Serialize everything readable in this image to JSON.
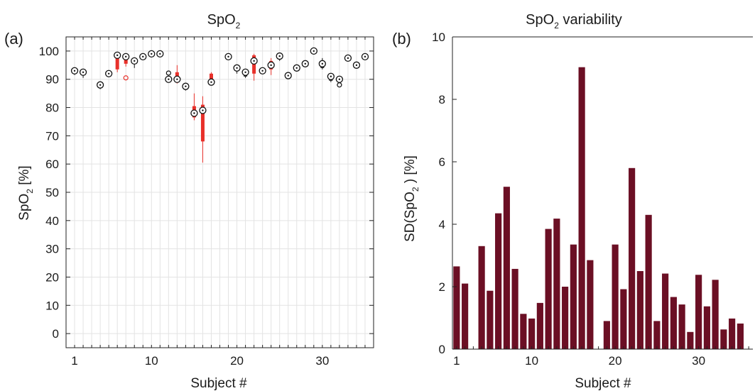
{
  "chart_data": [
    {
      "panel_label": "(a)",
      "type": "box",
      "title": "SpO",
      "title_sub": "2",
      "xlabel": "Subject #",
      "ylabel": "SpO",
      "ylabel_sub": "2",
      "ylabel_suffix": " [%]",
      "xlim": [
        0,
        36
      ],
      "ylim": [
        -5,
        105
      ],
      "xticks": [
        1,
        10,
        20,
        30
      ],
      "yticks": [
        0,
        10,
        20,
        30,
        40,
        50,
        60,
        70,
        80,
        90,
        100
      ],
      "grid": true,
      "colors": {
        "box": "#e8302a",
        "marker": "#111111",
        "grid": "#e3e3e3"
      },
      "boxes": [
        {
          "subject": 1,
          "median": 93,
          "q1": 92.5,
          "q3": 93.2,
          "wlo": 91.5,
          "whi": 93.5
        },
        {
          "subject": 2,
          "median": 92.5,
          "q1": 91.5,
          "q3": 92.6,
          "wlo": 90.5,
          "whi": 93
        },
        {
          "subject": 4,
          "median": 88,
          "q1": 87.7,
          "q3": 88.3,
          "wlo": 86.5,
          "whi": 88.6
        },
        {
          "subject": 5,
          "median": 92,
          "q1": 91.8,
          "q3": 92.2,
          "wlo": 91.5,
          "whi": 92.5
        },
        {
          "subject": 6,
          "median": 98.5,
          "q1": 93.5,
          "q3": 98.8,
          "wlo": 92.5,
          "whi": 99.5,
          "red": true
        },
        {
          "subject": 7,
          "median": 98,
          "q1": 95.5,
          "q3": 98.2,
          "wlo": 94.5,
          "whi": 98.5,
          "red": true,
          "outliers": [
            90.5
          ]
        },
        {
          "subject": 8,
          "median": 96.5,
          "q1": 95.5,
          "q3": 96.8,
          "wlo": 94,
          "whi": 97
        },
        {
          "subject": 9,
          "median": 98,
          "q1": 97.8,
          "q3": 98.2,
          "wlo": 97.5,
          "whi": 98.5
        },
        {
          "subject": 10,
          "median": 99,
          "q1": 98.8,
          "q3": 99.2,
          "wlo": 98.5,
          "whi": 99.5
        },
        {
          "subject": 11,
          "median": 99,
          "q1": 98.8,
          "q3": 99.2,
          "wlo": 98.5,
          "whi": 99.5
        },
        {
          "subject": 12,
          "median": 90,
          "q1": 89.7,
          "q3": 90.3,
          "wlo": 89.5,
          "whi": 90.5,
          "outliers": [
            92.2
          ]
        },
        {
          "subject": 13,
          "median": 90,
          "q1": 89,
          "q3": 92.5,
          "wlo": 88.5,
          "whi": 95,
          "red": true
        },
        {
          "subject": 14,
          "median": 87.5,
          "q1": 86.3,
          "q3": 87.7,
          "wlo": 86,
          "whi": 88
        },
        {
          "subject": 15,
          "median": 78,
          "q1": 76.5,
          "q3": 80.5,
          "wlo": 75.5,
          "whi": 85,
          "red": true
        },
        {
          "subject": 16,
          "median": 79,
          "q1": 68,
          "q3": 81,
          "wlo": 60.5,
          "whi": 84,
          "red": true
        },
        {
          "subject": 17,
          "median": 89,
          "q1": 88.5,
          "q3": 92,
          "wlo": 88,
          "whi": 92.5,
          "red": true
        },
        {
          "subject": 19,
          "median": 98,
          "q1": 97.8,
          "q3": 98.2,
          "wlo": 97.5,
          "whi": 98.5
        },
        {
          "subject": 20,
          "median": 94,
          "q1": 93,
          "q3": 94.3,
          "wlo": 92,
          "whi": 94.5
        },
        {
          "subject": 21,
          "median": 92.5,
          "q1": 91,
          "q3": 92.7,
          "wlo": 90.5,
          "whi": 93
        },
        {
          "subject": 22,
          "median": 96.5,
          "q1": 92,
          "q3": 98.5,
          "wlo": 89.5,
          "whi": 99,
          "red": true
        },
        {
          "subject": 23,
          "median": 93,
          "q1": 92.5,
          "q3": 93.2,
          "wlo": 92,
          "whi": 93.5
        },
        {
          "subject": 24,
          "median": 95,
          "q1": 93.5,
          "q3": 96.5,
          "wlo": 91.5,
          "whi": 97.5,
          "red": true
        },
        {
          "subject": 25,
          "median": 98.2,
          "q1": 97.8,
          "q3": 98.4,
          "wlo": 96.5,
          "whi": 98.8
        },
        {
          "subject": 26,
          "median": 91.3,
          "q1": 90.8,
          "q3": 91.5,
          "wlo": 90.3,
          "whi": 92.5
        },
        {
          "subject": 27,
          "median": 94,
          "q1": 93.8,
          "q3": 94.2,
          "wlo": 93.5,
          "whi": 94.5
        },
        {
          "subject": 28,
          "median": 95.5,
          "q1": 95.3,
          "q3": 95.7,
          "wlo": 95,
          "whi": 96
        },
        {
          "subject": 29,
          "median": 100,
          "q1": 99.8,
          "q3": 100.2,
          "wlo": 99.5,
          "whi": 100.5
        },
        {
          "subject": 30,
          "median": 95.5,
          "q1": 94,
          "q3": 95.8,
          "wlo": 93.5,
          "whi": 97.5
        },
        {
          "subject": 31,
          "median": 91,
          "q1": 89.5,
          "q3": 91.2,
          "wlo": 89,
          "whi": 91.5
        },
        {
          "subject": 32,
          "median": 90,
          "q1": 89.8,
          "q3": 90.2,
          "wlo": 89.5,
          "whi": 90.5,
          "outliers": [
            88
          ]
        },
        {
          "subject": 33,
          "median": 97.5,
          "q1": 97.3,
          "q3": 97.7,
          "wlo": 97,
          "whi": 98
        },
        {
          "subject": 34,
          "median": 95,
          "q1": 94.8,
          "q3": 95.2,
          "wlo": 94.5,
          "whi": 95.5
        },
        {
          "subject": 35,
          "median": 98,
          "q1": 97.8,
          "q3": 98.2,
          "wlo": 97.5,
          "whi": 98.5
        }
      ]
    },
    {
      "panel_label": "(b)",
      "type": "bar",
      "title": "SpO",
      "title_sub": "2",
      "title_suffix": " variability",
      "xlabel": "Subject #",
      "ylabel": "SD(SpO",
      "ylabel_sub": "2",
      "ylabel_suffix": " ) [%]",
      "xlim": [
        0.5,
        36.5
      ],
      "ylim": [
        0,
        10
      ],
      "xticks": [
        1,
        10,
        20,
        30
      ],
      "yticks": [
        0,
        2,
        4,
        6,
        8,
        10
      ],
      "grid": false,
      "colors": {
        "bar": "#6b0f24"
      },
      "categories": [
        1,
        2,
        3,
        4,
        5,
        6,
        7,
        8,
        9,
        10,
        11,
        12,
        13,
        14,
        15,
        16,
        17,
        18,
        19,
        20,
        21,
        22,
        23,
        24,
        25,
        26,
        27,
        28,
        29,
        30,
        31,
        32,
        33,
        34,
        35,
        36
      ],
      "values": [
        2.65,
        2.1,
        0,
        3.3,
        1.87,
        4.35,
        5.2,
        2.57,
        1.13,
        0.98,
        1.48,
        3.85,
        4.18,
        2.0,
        3.35,
        9.03,
        2.85,
        0,
        0.9,
        3.35,
        1.92,
        5.8,
        2.5,
        4.3,
        0.9,
        2.42,
        1.67,
        1.43,
        0.55,
        2.38,
        1.37,
        2.22,
        0.63,
        0.98,
        0.82,
        0
      ]
    }
  ]
}
